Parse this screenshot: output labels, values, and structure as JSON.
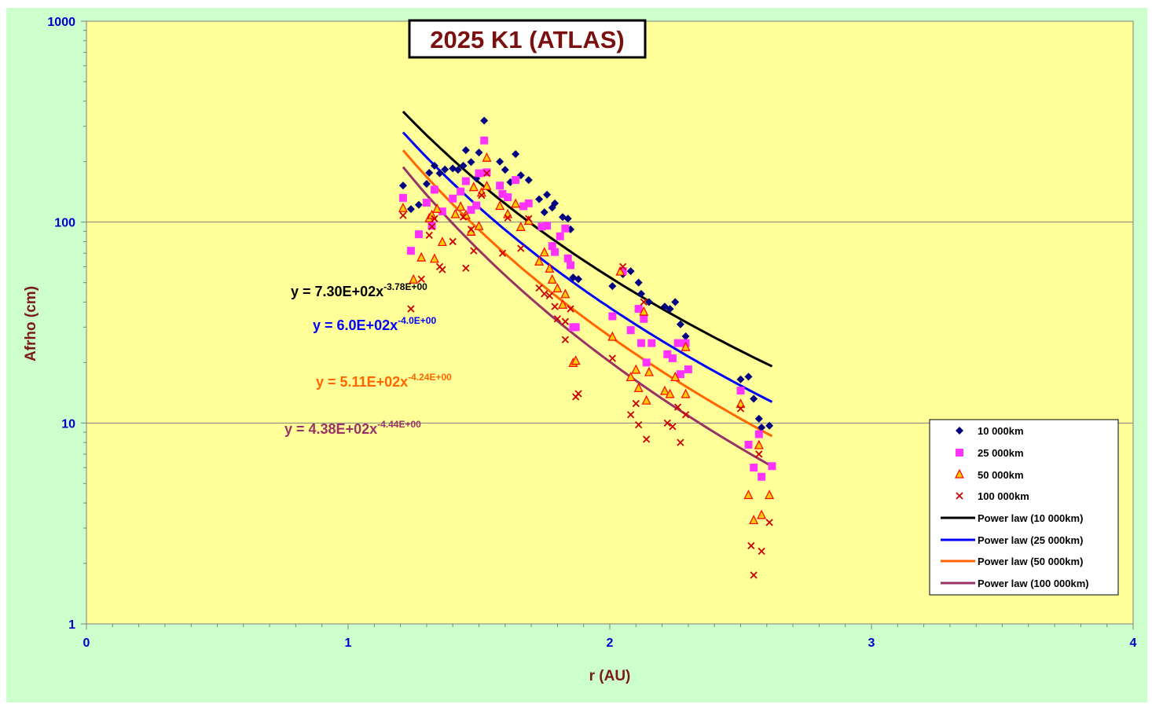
{
  "colors": {
    "outer_background": "#ccffcc",
    "plot_background": "#ffff99",
    "gridline": "#808080",
    "tick_text": "#0000cc",
    "axis_title": "#7a1a1a",
    "title_text": "#7a1010"
  },
  "chart_data": {
    "type": "scatter",
    "title": "2025 K1 (ATLAS)",
    "xlabel": "r (AU)",
    "ylabel": "Afrho (cm)",
    "xlim": [
      0,
      4
    ],
    "ylim": [
      1,
      1000
    ],
    "yscale": "log",
    "x_ticks": [
      "0",
      "1",
      "2",
      "3",
      "4"
    ],
    "y_ticks": [
      "1",
      "10",
      "100",
      "1000"
    ],
    "grid": "horizontal major gridlines",
    "legend_position": "bottom-right",
    "series": [
      {
        "name": "10 000km",
        "marker": "diamond",
        "color": "#000080",
        "points": [
          [
            1.21,
            152
          ],
          [
            1.24,
            116
          ],
          [
            1.27,
            122
          ],
          [
            1.3,
            155
          ],
          [
            1.31,
            176
          ],
          [
            1.33,
            191
          ],
          [
            1.35,
            175
          ],
          [
            1.37,
            183
          ],
          [
            1.4,
            185
          ],
          [
            1.42,
            182
          ],
          [
            1.44,
            191
          ],
          [
            1.45,
            228
          ],
          [
            1.47,
            199
          ],
          [
            1.49,
            165
          ],
          [
            1.5,
            222
          ],
          [
            1.52,
            320
          ],
          [
            1.58,
            200
          ],
          [
            1.6,
            182
          ],
          [
            1.62,
            158
          ],
          [
            1.64,
            218
          ],
          [
            1.66,
            171
          ],
          [
            1.69,
            162
          ],
          [
            1.73,
            130
          ],
          [
            1.75,
            112
          ],
          [
            1.76,
            137
          ],
          [
            1.78,
            118
          ],
          [
            1.79,
            124
          ],
          [
            1.82,
            106
          ],
          [
            1.84,
            104
          ],
          [
            1.85,
            92
          ],
          [
            1.86,
            53
          ],
          [
            1.88,
            52
          ],
          [
            2.01,
            48
          ],
          [
            2.05,
            55
          ],
          [
            2.08,
            57
          ],
          [
            2.11,
            50
          ],
          [
            2.12,
            44
          ],
          [
            2.13,
            34
          ],
          [
            2.15,
            40
          ],
          [
            2.21,
            38
          ],
          [
            2.23,
            37
          ],
          [
            2.25,
            40
          ],
          [
            2.27,
            31
          ],
          [
            2.29,
            27
          ],
          [
            2.5,
            16.5
          ],
          [
            2.53,
            17
          ],
          [
            2.55,
            13.2
          ],
          [
            2.57,
            10.5
          ],
          [
            2.58,
            9.5
          ],
          [
            2.61,
            9.7
          ]
        ]
      },
      {
        "name": "25 000km",
        "marker": "square",
        "color": "#ff33ff",
        "points": [
          [
            1.21,
            132
          ],
          [
            1.24,
            72
          ],
          [
            1.27,
            87
          ],
          [
            1.3,
            125
          ],
          [
            1.32,
            96
          ],
          [
            1.33,
            145
          ],
          [
            1.36,
            113
          ],
          [
            1.4,
            131
          ],
          [
            1.43,
            142
          ],
          [
            1.45,
            160
          ],
          [
            1.47,
            115
          ],
          [
            1.49,
            121
          ],
          [
            1.5,
            175
          ],
          [
            1.52,
            255
          ],
          [
            1.53,
            177
          ],
          [
            1.58,
            152
          ],
          [
            1.59,
            138
          ],
          [
            1.61,
            133
          ],
          [
            1.64,
            162
          ],
          [
            1.67,
            120
          ],
          [
            1.69,
            124
          ],
          [
            1.74,
            95
          ],
          [
            1.76,
            96
          ],
          [
            1.78,
            76
          ],
          [
            1.79,
            71
          ],
          [
            1.81,
            85
          ],
          [
            1.83,
            93
          ],
          [
            1.84,
            66
          ],
          [
            1.85,
            61
          ],
          [
            1.86,
            30
          ],
          [
            1.87,
            30
          ],
          [
            2.01,
            34
          ],
          [
            2.05,
            57
          ],
          [
            2.08,
            29
          ],
          [
            2.11,
            37
          ],
          [
            2.12,
            25
          ],
          [
            2.13,
            33
          ],
          [
            2.14,
            20
          ],
          [
            2.16,
            25
          ],
          [
            2.22,
            22
          ],
          [
            2.24,
            21
          ],
          [
            2.26,
            25
          ],
          [
            2.27,
            17.5
          ],
          [
            2.29,
            25
          ],
          [
            2.3,
            18.5
          ],
          [
            2.5,
            14.5
          ],
          [
            2.53,
            7.8
          ],
          [
            2.55,
            6.0
          ],
          [
            2.57,
            8.8
          ],
          [
            2.58,
            5.4
          ],
          [
            2.62,
            6.1
          ]
        ]
      },
      {
        "name": "50 000km",
        "marker": "triangle",
        "color": "#ff0000",
        "fill": "#ffcc00",
        "points": [
          [
            1.21,
            118
          ],
          [
            1.25,
            52
          ],
          [
            1.28,
            67
          ],
          [
            1.31,
            105
          ],
          [
            1.32,
            109
          ],
          [
            1.33,
            66
          ],
          [
            1.34,
            117
          ],
          [
            1.36,
            80
          ],
          [
            1.41,
            110
          ],
          [
            1.43,
            120
          ],
          [
            1.45,
            109
          ],
          [
            1.47,
            90
          ],
          [
            1.48,
            150
          ],
          [
            1.5,
            96
          ],
          [
            1.51,
            141
          ],
          [
            1.53,
            152
          ],
          [
            1.53,
            210
          ],
          [
            1.58,
            121
          ],
          [
            1.61,
            110
          ],
          [
            1.64,
            124
          ],
          [
            1.66,
            95
          ],
          [
            1.69,
            102
          ],
          [
            1.73,
            64
          ],
          [
            1.75,
            71
          ],
          [
            1.77,
            59
          ],
          [
            1.78,
            52
          ],
          [
            1.8,
            47
          ],
          [
            1.82,
            39
          ],
          [
            1.83,
            44
          ],
          [
            1.86,
            20
          ],
          [
            1.87,
            20.5
          ],
          [
            2.01,
            27
          ],
          [
            2.04,
            57
          ],
          [
            2.08,
            17
          ],
          [
            2.1,
            18.5
          ],
          [
            2.11,
            15
          ],
          [
            2.13,
            36
          ],
          [
            2.14,
            13
          ],
          [
            2.15,
            18
          ],
          [
            2.21,
            14.5
          ],
          [
            2.23,
            14
          ],
          [
            2.25,
            17
          ],
          [
            2.29,
            14
          ],
          [
            2.29,
            24
          ],
          [
            2.5,
            12.5
          ],
          [
            2.53,
            4.4
          ],
          [
            2.55,
            3.3
          ],
          [
            2.57,
            7.8
          ],
          [
            2.58,
            3.5
          ],
          [
            2.61,
            4.4
          ]
        ]
      },
      {
        "name": "100 000km",
        "marker": "x",
        "color": "#cc0000",
        "points": [
          [
            1.21,
            108
          ],
          [
            1.24,
            37
          ],
          [
            1.28,
            52
          ],
          [
            1.31,
            86
          ],
          [
            1.32,
            95
          ],
          [
            1.33,
            104
          ],
          [
            1.35,
            60
          ],
          [
            1.36,
            58
          ],
          [
            1.4,
            80
          ],
          [
            1.44,
            106
          ],
          [
            1.45,
            59
          ],
          [
            1.47,
            92
          ],
          [
            1.48,
            72
          ],
          [
            1.51,
            136
          ],
          [
            1.53,
            175
          ],
          [
            1.59,
            70
          ],
          [
            1.61,
            105
          ],
          [
            1.66,
            74
          ],
          [
            1.69,
            104
          ],
          [
            1.73,
            47
          ],
          [
            1.75,
            44
          ],
          [
            1.77,
            43
          ],
          [
            1.79,
            38
          ],
          [
            1.8,
            33
          ],
          [
            1.83,
            26
          ],
          [
            1.83,
            32
          ],
          [
            1.85,
            37
          ],
          [
            1.87,
            13.5
          ],
          [
            1.88,
            14
          ],
          [
            2.01,
            21
          ],
          [
            2.05,
            60
          ],
          [
            2.08,
            11
          ],
          [
            2.1,
            12.5
          ],
          [
            2.11,
            9.8
          ],
          [
            2.13,
            40
          ],
          [
            2.14,
            8.3
          ],
          [
            2.22,
            10
          ],
          [
            2.24,
            9.6
          ],
          [
            2.26,
            12
          ],
          [
            2.27,
            8.0
          ],
          [
            2.29,
            11
          ],
          [
            2.5,
            11.8
          ],
          [
            2.54,
            2.45
          ],
          [
            2.55,
            1.75
          ],
          [
            2.57,
            7
          ],
          [
            2.58,
            2.3
          ],
          [
            2.61,
            3.2
          ]
        ]
      },
      {
        "name": "Power law (10 000km)",
        "type": "line",
        "color": "#000000",
        "a": 730,
        "b": -3.78,
        "x_range": [
          1.21,
          2.62
        ],
        "equation_label": "y = 7.30E+02x",
        "equation_exponent": "-3.78E+00"
      },
      {
        "name": "Power law (25 000km)",
        "type": "line",
        "color": "#0000ff",
        "a": 600,
        "b": -4.0,
        "x_range": [
          1.21,
          2.62
        ],
        "equation_label": "y = 6.0E+02x",
        "equation_exponent": "-4.0E+00"
      },
      {
        "name": "Power law (50 000km)",
        "type": "line",
        "color": "#ff6600",
        "a": 511,
        "b": -4.24,
        "x_range": [
          1.21,
          2.62
        ],
        "equation_label": "y = 5.11E+02x",
        "equation_exponent": "-4.24E+00"
      },
      {
        "name": "Power law (100 000km)",
        "type": "line",
        "color": "#993366",
        "a": 438,
        "b": -4.44,
        "x_range": [
          1.21,
          2.62
        ],
        "equation_label": "y = 4.38E+02x",
        "equation_exponent": "-4.44E+00"
      }
    ]
  }
}
